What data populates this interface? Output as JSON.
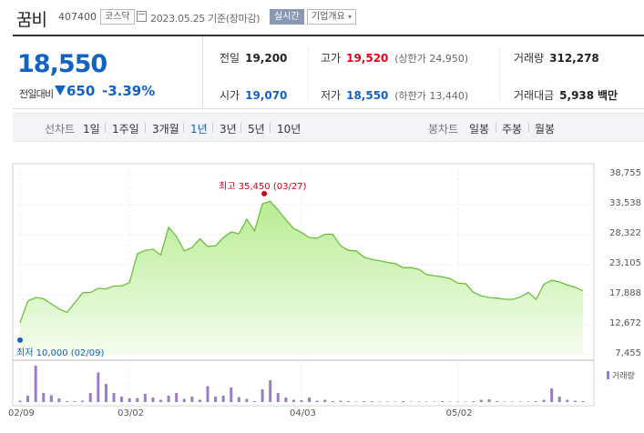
{
  "header": {
    "stock_name": "꿈비",
    "stock_code": "407400",
    "market_badge": "코스닥",
    "date_text": "2023.05.25 기준(장마감)",
    "realtime_badge": "실시간",
    "company_info_badge": "기업개요",
    "caret": "▾"
  },
  "summary": {
    "price": "18,550",
    "prev_label": "전일대비",
    "change": "650",
    "change_pct": "-3.39%",
    "prev_close_label": "전일",
    "prev_close": "19,200",
    "open_label": "시가",
    "open": "19,070",
    "high_label": "고가",
    "high": "19,520",
    "upper_limit_label": "(상한가",
    "upper_limit": "24,950)",
    "low_label": "저가",
    "low": "18,550",
    "lower_limit_label": "(하한가",
    "lower_limit": "13,440)",
    "volume_label": "거래량",
    "volume": "312,278",
    "trade_value_label": "거래대금",
    "trade_value": "5,938",
    "trade_value_unit": "백만",
    "colors": {
      "up": "#e4001c",
      "down": "#1261c4"
    }
  },
  "period_bar": {
    "line_label": "선차트",
    "line_options": [
      "1일",
      "1주일",
      "3개월",
      "1년",
      "3년",
      "5년",
      "10년"
    ],
    "line_selected": "1년",
    "candle_label": "봉차트",
    "candle_options": [
      "일봉",
      "주봉",
      "월봉"
    ]
  },
  "chart_data": {
    "type": "area",
    "y_ticks": [
      "38,755",
      "33,538",
      "28,322",
      "23,105",
      "17,888",
      "12,672",
      "7,455"
    ],
    "ylim": [
      7455,
      38755
    ],
    "x_ticks": [
      "02/09",
      "03/02",
      "04/03",
      "05/02"
    ],
    "x": [
      "02/09",
      "02/10",
      "02/13",
      "02/14",
      "02/15",
      "02/16",
      "02/17",
      "02/20",
      "02/21",
      "02/22",
      "02/23",
      "02/24",
      "02/27",
      "02/28",
      "03/02",
      "03/03",
      "03/06",
      "03/07",
      "03/08",
      "03/09",
      "03/10",
      "03/13",
      "03/14",
      "03/15",
      "03/16",
      "03/17",
      "03/20",
      "03/21",
      "03/22",
      "03/23",
      "03/24",
      "03/27",
      "03/28",
      "03/29",
      "03/30",
      "03/31",
      "04/03",
      "04/04",
      "04/05",
      "04/06",
      "04/07",
      "04/10",
      "04/11",
      "04/12",
      "04/13",
      "04/14",
      "04/17",
      "04/18",
      "04/19",
      "04/20",
      "04/21",
      "04/24",
      "04/25",
      "04/26",
      "04/27",
      "04/28",
      "05/02",
      "05/03",
      "05/04",
      "05/08",
      "05/09",
      "05/10",
      "05/11",
      "05/12",
      "05/15",
      "05/16",
      "05/17",
      "05/18",
      "05/19",
      "05/22",
      "05/23",
      "05/24",
      "05/25"
    ],
    "price": [
      13000,
      16800,
      17400,
      17200,
      16300,
      15400,
      14800,
      16500,
      18200,
      18300,
      19000,
      18900,
      19400,
      19400,
      20000,
      25000,
      25600,
      25800,
      24800,
      29600,
      28000,
      25500,
      26100,
      27600,
      26300,
      26400,
      27800,
      28800,
      28500,
      31000,
      29000,
      33700,
      34100,
      32600,
      30900,
      29400,
      28700,
      27800,
      27700,
      28400,
      28400,
      26400,
      25600,
      25500,
      24400,
      24000,
      23800,
      23500,
      23300,
      22600,
      22600,
      22300,
      21400,
      21200,
      21000,
      20700,
      19900,
      19800,
      18300,
      17700,
      17400,
      17300,
      17100,
      17100,
      17500,
      18300,
      17100,
      19700,
      20400,
      20100,
      19600,
      19200,
      18550
    ],
    "volume": [
      3,
      14,
      80,
      20,
      15,
      8,
      2,
      2,
      3,
      20,
      65,
      40,
      20,
      12,
      8,
      9,
      18,
      10,
      5,
      14,
      20,
      7,
      12,
      5,
      35,
      12,
      14,
      32,
      11,
      7,
      2,
      28,
      48,
      20,
      10,
      5,
      4,
      10,
      3,
      5,
      2,
      3,
      2,
      1,
      2,
      2,
      1,
      1,
      1,
      2,
      1,
      1,
      1,
      1,
      2,
      1,
      1,
      1,
      2,
      5,
      6,
      2,
      1,
      1,
      1,
      1,
      2,
      5,
      30,
      12,
      5,
      3,
      2
    ],
    "high_annotation": "최고 35,450 (03/27)",
    "low_annotation": "최저 10,000 (02/09)",
    "volume_legend": "거래량",
    "colors": {
      "line": "#6cbf3a",
      "fill": "#d9f5c4",
      "volume": "#9b7cc6"
    }
  }
}
